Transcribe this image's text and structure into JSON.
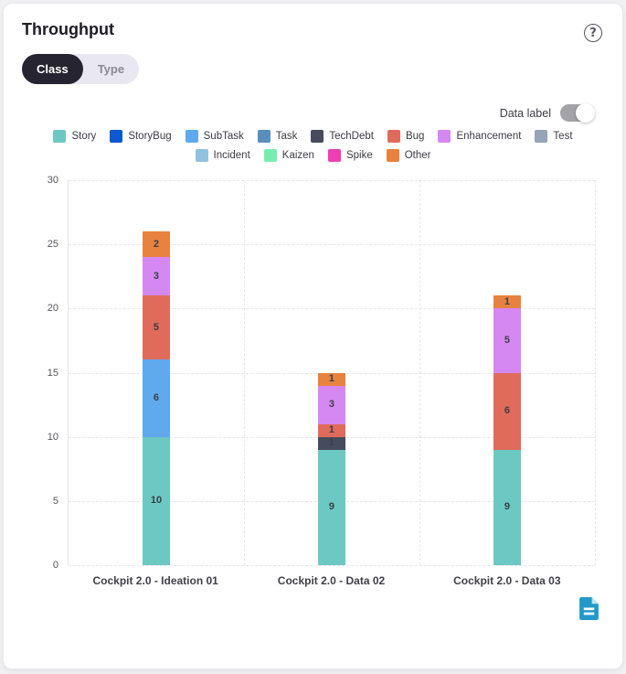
{
  "card": {
    "title": "Throughput"
  },
  "help_icon": {
    "glyph": "?"
  },
  "view_toggle": {
    "options": [
      "Class",
      "Type"
    ],
    "active": "Class"
  },
  "data_label_toggle": {
    "label": "Data label",
    "on": true
  },
  "chart_data": {
    "type": "bar",
    "stacked": true,
    "title": "Throughput",
    "categories": [
      "Cockpit 2.0 - Ideation 01",
      "Cockpit 2.0 - Data 02",
      "Cockpit 2.0 - Data 03"
    ],
    "series": [
      {
        "name": "Story",
        "color": "#6CC8C2",
        "values": [
          10,
          9,
          9
        ]
      },
      {
        "name": "StoryBug",
        "color": "#0B58D0",
        "values": [
          0,
          0,
          0
        ]
      },
      {
        "name": "SubTask",
        "color": "#5FAAEE",
        "values": [
          6,
          0,
          0
        ]
      },
      {
        "name": "Task",
        "color": "#5A8FBC",
        "values": [
          0,
          0,
          0
        ]
      },
      {
        "name": "TechDebt",
        "color": "#474B5E",
        "values": [
          0,
          1,
          0
        ]
      },
      {
        "name": "Bug",
        "color": "#E06B5B",
        "values": [
          5,
          1,
          6
        ]
      },
      {
        "name": "Enhancement",
        "color": "#D688F2",
        "values": [
          3,
          3,
          5
        ]
      },
      {
        "name": "Test",
        "color": "#97A3B6",
        "values": [
          0,
          0,
          0
        ]
      },
      {
        "name": "Incident",
        "color": "#90C2E0",
        "values": [
          0,
          0,
          0
        ]
      },
      {
        "name": "Kaizen",
        "color": "#78EDB2",
        "values": [
          0,
          0,
          0
        ]
      },
      {
        "name": "Spike",
        "color": "#F03EB5",
        "values": [
          0,
          0,
          0
        ]
      },
      {
        "name": "Other",
        "color": "#E8823F",
        "values": [
          2,
          1,
          1
        ]
      }
    ],
    "totals": [
      26,
      15,
      21
    ],
    "ylim": [
      0,
      30
    ],
    "yticks": [
      0,
      5,
      10,
      15,
      20,
      25,
      30
    ],
    "grid": true,
    "legend_position": "top",
    "legend_rows": [
      8,
      4
    ],
    "data_labels_visible": true
  },
  "export_icon": {
    "name": "document-icon",
    "color": "#2199C9"
  }
}
